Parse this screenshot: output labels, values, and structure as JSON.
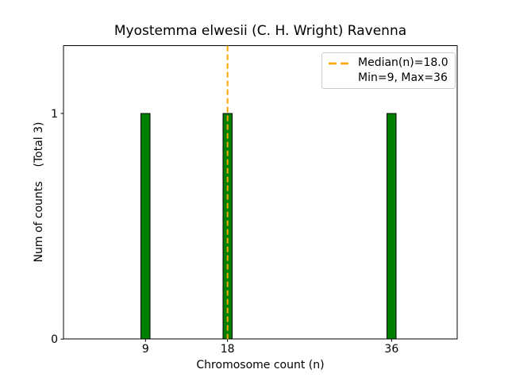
{
  "figure": {
    "background": "#ffffff"
  },
  "chart_data": {
    "type": "bar",
    "title": "Myostemma elwesii (C. H. Wright) Ravenna",
    "xlabel": "Chromosome count (n)",
    "ylabel": "Num of counts    (Total 3)",
    "x": [
      9,
      18,
      36
    ],
    "values": [
      1,
      1,
      1
    ],
    "bar_width_data_units": 1,
    "bar_color": "#008000",
    "bar_edge_color": "#000000",
    "xlim": [
      0,
      43.2
    ],
    "ylim": [
      0,
      1.3
    ],
    "xticks": [
      9,
      18,
      36
    ],
    "yticks": [
      0,
      1
    ],
    "grid": false,
    "spine_color": "#000000",
    "median_line": {
      "x": 18.0,
      "color": "#FFA500",
      "style": "dashed",
      "width": 2
    },
    "legend": {
      "position": "upper right",
      "entries": [
        {
          "label": "Median(n)=18.0",
          "sample": "dashed-line",
          "color": "#FFA500"
        },
        {
          "label": "Min=9, Max=36",
          "sample": "none"
        }
      ]
    }
  }
}
